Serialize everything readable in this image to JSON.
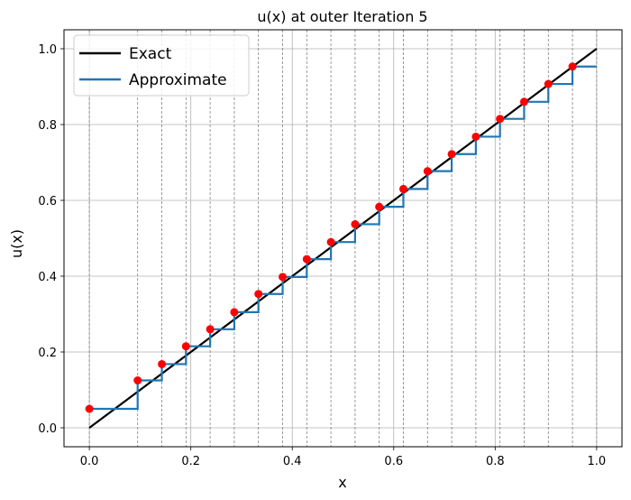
{
  "chart_data": {
    "type": "line",
    "title": "u(x) at outer Iteration 5",
    "xlabel": "x",
    "ylabel": "u(x)",
    "xlim": [
      -0.05,
      1.05
    ],
    "ylim": [
      -0.05,
      1.05
    ],
    "x_ticks": [
      0.0,
      0.2,
      0.4,
      0.6,
      0.8,
      1.0
    ],
    "y_ticks": [
      0.0,
      0.2,
      0.4,
      0.6,
      0.8,
      1.0
    ],
    "x_tick_labels": [
      "0.0",
      "0.2",
      "0.4",
      "0.6",
      "0.8",
      "1.0"
    ],
    "y_tick_labels": [
      "0.0",
      "0.2",
      "0.4",
      "0.6",
      "0.8",
      "1.0"
    ],
    "grid": true,
    "legend_position": "top-left",
    "mesh_nodes": [
      0.0,
      0.0952,
      0.1429,
      0.1905,
      0.2381,
      0.2857,
      0.3333,
      0.381,
      0.4286,
      0.4762,
      0.5238,
      0.5714,
      0.619,
      0.6667,
      0.7143,
      0.7619,
      0.8095,
      0.8571,
      0.9048,
      0.9524,
      1.0
    ],
    "series": [
      {
        "name": "Exact",
        "color": "#000000",
        "x": [
          0.0,
          1.0
        ],
        "y": [
          0.0,
          1.0
        ]
      },
      {
        "name": "Approximate",
        "color": "#1f77b4",
        "steps": [
          {
            "x0": 0.0,
            "x1": 0.0952,
            "y": 0.05
          },
          {
            "x0": 0.0952,
            "x1": 0.1429,
            "y": 0.125
          },
          {
            "x0": 0.1429,
            "x1": 0.1905,
            "y": 0.168
          },
          {
            "x0": 0.1905,
            "x1": 0.2381,
            "y": 0.215
          },
          {
            "x0": 0.2381,
            "x1": 0.2857,
            "y": 0.26
          },
          {
            "x0": 0.2857,
            "x1": 0.3333,
            "y": 0.305
          },
          {
            "x0": 0.3333,
            "x1": 0.381,
            "y": 0.353
          },
          {
            "x0": 0.381,
            "x1": 0.4286,
            "y": 0.398
          },
          {
            "x0": 0.4286,
            "x1": 0.4762,
            "y": 0.445
          },
          {
            "x0": 0.4762,
            "x1": 0.5238,
            "y": 0.49
          },
          {
            "x0": 0.5238,
            "x1": 0.5714,
            "y": 0.537
          },
          {
            "x0": 0.5714,
            "x1": 0.619,
            "y": 0.583
          },
          {
            "x0": 0.619,
            "x1": 0.6667,
            "y": 0.63
          },
          {
            "x0": 0.6667,
            "x1": 0.7143,
            "y": 0.677
          },
          {
            "x0": 0.7143,
            "x1": 0.7619,
            "y": 0.722
          },
          {
            "x0": 0.7619,
            "x1": 0.8095,
            "y": 0.768
          },
          {
            "x0": 0.8095,
            "x1": 0.8571,
            "y": 0.815
          },
          {
            "x0": 0.8571,
            "x1": 0.9048,
            "y": 0.86
          },
          {
            "x0": 0.9048,
            "x1": 0.9524,
            "y": 0.907
          },
          {
            "x0": 0.9524,
            "x1": 1.0,
            "y": 0.953
          }
        ]
      }
    ],
    "points": {
      "color": "#ff0000",
      "x": [
        0.0,
        0.0952,
        0.1429,
        0.1905,
        0.2381,
        0.2857,
        0.3333,
        0.381,
        0.4286,
        0.4762,
        0.5238,
        0.5714,
        0.619,
        0.6667,
        0.7143,
        0.7619,
        0.8095,
        0.8571,
        0.9048,
        0.9524
      ],
      "y": [
        0.05,
        0.125,
        0.168,
        0.215,
        0.26,
        0.305,
        0.353,
        0.398,
        0.445,
        0.49,
        0.537,
        0.583,
        0.63,
        0.677,
        0.722,
        0.768,
        0.815,
        0.86,
        0.907,
        0.953
      ]
    }
  }
}
